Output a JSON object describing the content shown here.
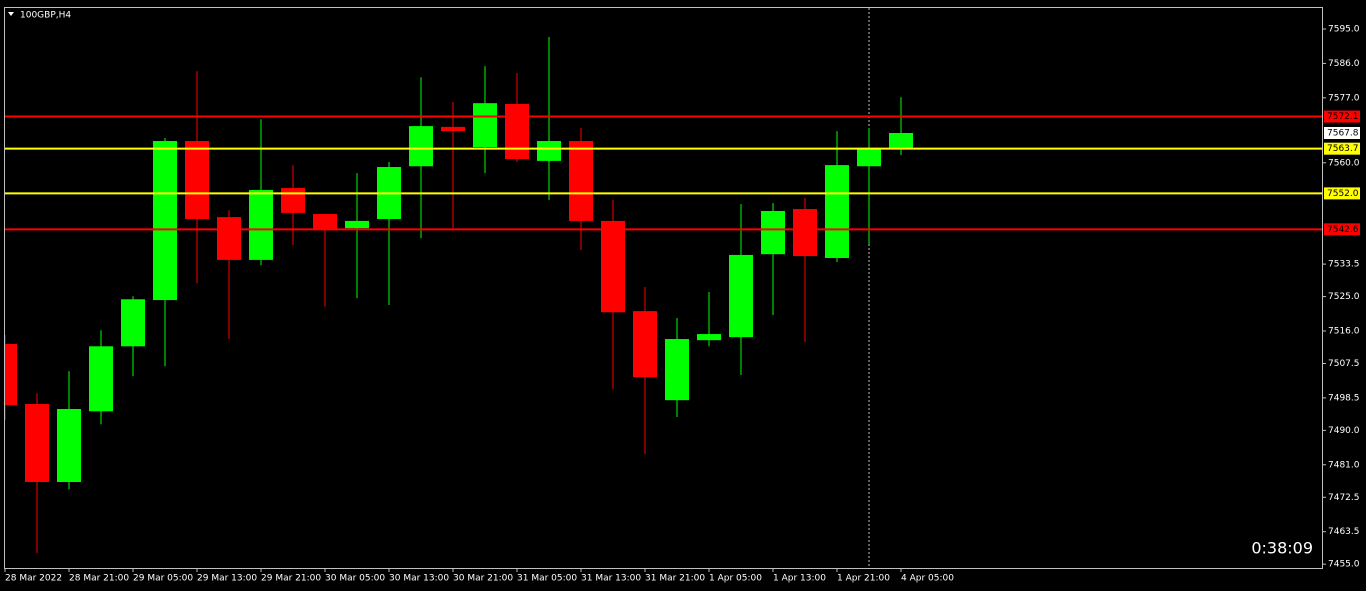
{
  "chart_data": {
    "type": "candlestick",
    "title": "100GBP,H4",
    "categories": [
      "28 Mar 2022",
      null,
      "28 Mar 21:00",
      null,
      "29 Mar 05:00",
      null,
      "29 Mar 13:00",
      null,
      "29 Mar 21:00",
      null,
      "30 Mar 05:00",
      null,
      "30 Mar 13:00",
      null,
      "30 Mar 21:00",
      null,
      "31 Mar 05:00",
      null,
      "31 Mar 13:00",
      null,
      "31 Mar 21:00",
      null,
      "1 Apr 05:00",
      null,
      "1 Apr 13:00",
      null,
      "1 Apr 21:00",
      null,
      "4 Apr 05:00"
    ],
    "open": [
      7512.6,
      7496.9,
      7476.5,
      7495.0,
      7512.0,
      7524.1,
      7565.7,
      7545.8,
      7534.6,
      7553.4,
      7546.6,
      7542.9,
      7545.3,
      7559.1,
      7569.4,
      7564.1,
      7575.4,
      7560.5,
      7565.7,
      7544.8,
      7521.2,
      7497.9,
      7513.6,
      7514.4,
      7536.1,
      7547.9,
      7535.1,
      7559.1,
      7563.9
    ],
    "high": [
      7515.0,
      7499.7,
      7505.5,
      7516.2,
      7525.1,
      7566.5,
      7584.0,
      7547.6,
      7571.4,
      7559.4,
      7546.6,
      7557.3,
      7560.2,
      7582.4,
      7575.9,
      7585.3,
      7583.5,
      7592.9,
      7569.1,
      7550.3,
      7527.5,
      7519.4,
      7526.2,
      7549.2,
      7549.5,
      7550.8,
      7568.3,
      7569.1,
      7577.2
    ],
    "low": [
      7492.7,
      7457.9,
      7474.6,
      7491.6,
      7504.2,
      7506.8,
      7528.5,
      7513.9,
      7533.2,
      7538.5,
      7522.3,
      7524.6,
      7522.8,
      7540.3,
      7542.9,
      7557.3,
      7560.2,
      7550.3,
      7537.2,
      7500.8,
      7483.8,
      7493.5,
      7512.0,
      7504.5,
      7520.2,
      7513.1,
      7534.0,
      7538.7,
      7562.0
    ],
    "close": [
      7496.6,
      7476.5,
      7495.6,
      7512.0,
      7524.3,
      7565.7,
      7545.3,
      7534.6,
      7552.9,
      7546.9,
      7542.7,
      7544.8,
      7558.9,
      7569.6,
      7568.3,
      7575.6,
      7561.0,
      7565.7,
      7544.8,
      7520.9,
      7503.9,
      7513.9,
      7515.2,
      7535.9,
      7547.4,
      7535.6,
      7559.4,
      7563.9,
      7567.8
    ],
    "up_color": "#00ff00",
    "down_color": "#ff0000",
    "ylim": [
      7454.0,
      7600.5
    ],
    "yticks": [
      {
        "value": 7595,
        "label": "7595.0"
      },
      {
        "value": 7586,
        "label": "7586.0"
      },
      {
        "value": 7577,
        "label": "7577.0"
      },
      {
        "value": 7560,
        "label": "7560.0"
      },
      7533.5,
      {
        "value": 7525,
        "label": "7525.0"
      },
      {
        "value": 7516,
        "label": "7516.0"
      },
      7507.5,
      7498.5,
      {
        "value": 7490,
        "label": "7490.0"
      },
      {
        "value": 7481,
        "label": "7481.0"
      },
      7472.5,
      7463.5,
      {
        "value": 7455,
        "label": "7455.0"
      }
    ],
    "levels": [
      7572.1,
      7563.7,
      {
        "value": 7552,
        "label": "7552.0"
      },
      7542.6
    ],
    "level_colors": [
      "#ff0000",
      "#ffff00",
      "#ffff00",
      "#ff0000"
    ],
    "timer": "0:38:09"
  }
}
